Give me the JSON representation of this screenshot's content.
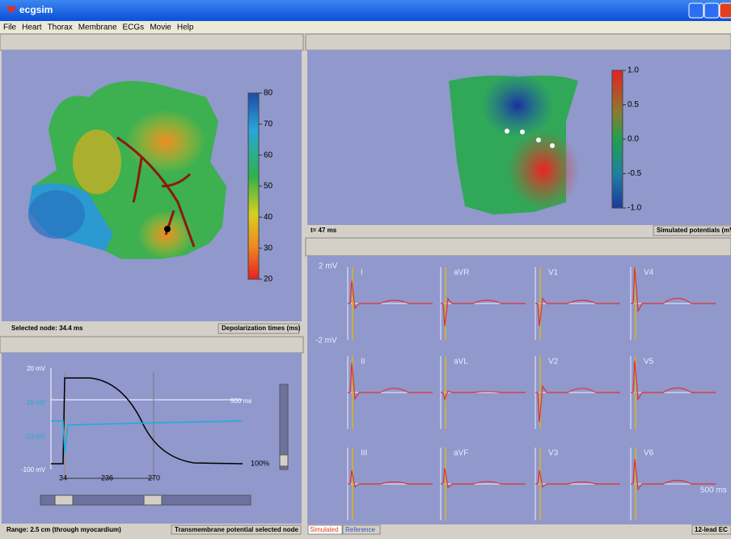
{
  "window": {
    "title": "ecgsim"
  },
  "menu": [
    "File",
    "Heart",
    "Thorax",
    "Membrane",
    "ECGs",
    "Movie",
    "Help"
  ],
  "heart_panel": {
    "colorbar_ticks": [
      "80",
      "70",
      "60",
      "50",
      "40",
      "30",
      "20"
    ],
    "status_left": "Selected node: 34.4 ms",
    "status_right": "Depolarization times (ms)"
  },
  "potential_panel": {
    "y_labels": [
      "20 mV",
      "10 mV",
      "-10 mV",
      "-100 mV"
    ],
    "time_label": "500 ms",
    "percent_label": "100%",
    "markers": [
      "34",
      "236",
      "270"
    ],
    "status_left": "Range: 2.5 cm (through myocardium)",
    "status_right": "Transmembrane potential selected node"
  },
  "torso_panel": {
    "colorbar_ticks": [
      "1.0",
      "0.5",
      "0.0",
      "-0.5",
      "-1.0"
    ],
    "status_left": "t= 47 ms",
    "status_right": "Simulated potentials (mV"
  },
  "ecg_panel": {
    "scale_top": "2 mV",
    "scale_bottom": "-2 mV",
    "leads": [
      "I",
      "aVR",
      "V1",
      "V4",
      "II",
      "aVL",
      "V2",
      "V5",
      "III",
      "aVF",
      "V3",
      "V6"
    ],
    "time_label": "500 ms",
    "tab_simulated": "Simulated",
    "tab_reference": "Reference",
    "status_right": "12-lead EC"
  }
}
